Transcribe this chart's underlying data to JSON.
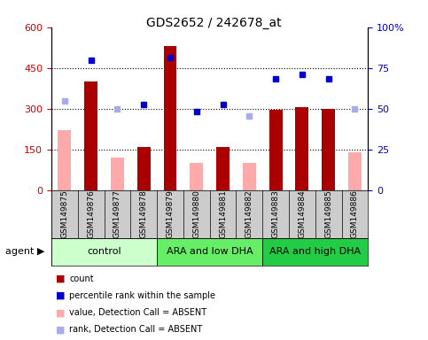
{
  "title": "GDS2652 / 242678_at",
  "samples": [
    "GSM149875",
    "GSM149876",
    "GSM149877",
    "GSM149878",
    "GSM149879",
    "GSM149880",
    "GSM149881",
    "GSM149882",
    "GSM149883",
    "GSM149884",
    "GSM149885",
    "GSM149886"
  ],
  "count_values": [
    null,
    400,
    null,
    160,
    530,
    null,
    160,
    null,
    295,
    305,
    300,
    null
  ],
  "count_absent": [
    220,
    null,
    120,
    null,
    null,
    100,
    null,
    100,
    null,
    null,
    null,
    140
  ],
  "rank_values": [
    null,
    480,
    null,
    315,
    490,
    290,
    315,
    null,
    410,
    425,
    410,
    null
  ],
  "rank_absent": [
    330,
    null,
    300,
    null,
    null,
    null,
    null,
    275,
    null,
    null,
    null,
    300
  ],
  "groups": [
    {
      "label": "control",
      "start": 0,
      "end": 4,
      "color": "#ccffcc"
    },
    {
      "label": "ARA and low DHA",
      "start": 4,
      "end": 8,
      "color": "#66ee66"
    },
    {
      "label": "ARA and high DHA",
      "start": 8,
      "end": 12,
      "color": "#22cc44"
    }
  ],
  "ylim_left": [
    0,
    600
  ],
  "ylim_right": [
    0,
    100
  ],
  "yticks_left": [
    0,
    150,
    300,
    450,
    600
  ],
  "ytick_labels_left": [
    "0",
    "150",
    "300",
    "450",
    "600"
  ],
  "yticks_right": [
    0,
    25,
    50,
    75,
    100
  ],
  "ytick_labels_right": [
    "0",
    "25",
    "50",
    "75",
    "100%"
  ],
  "hline_values": [
    150,
    300,
    450
  ],
  "bar_color": "#aa0000",
  "bar_absent_color": "#ffaaaa",
  "dot_color": "#0000cc",
  "dot_absent_color": "#aaaaee",
  "left_tick_color": "#cc0000",
  "right_tick_color": "#0000cc",
  "xtick_bg_color": "#cccccc",
  "legend_items": [
    {
      "color": "#aa0000",
      "label": "count"
    },
    {
      "color": "#0000cc",
      "label": "percentile rank within the sample"
    },
    {
      "color": "#ffaaaa",
      "label": "value, Detection Call = ABSENT"
    },
    {
      "color": "#aaaaee",
      "label": "rank, Detection Call = ABSENT"
    }
  ]
}
